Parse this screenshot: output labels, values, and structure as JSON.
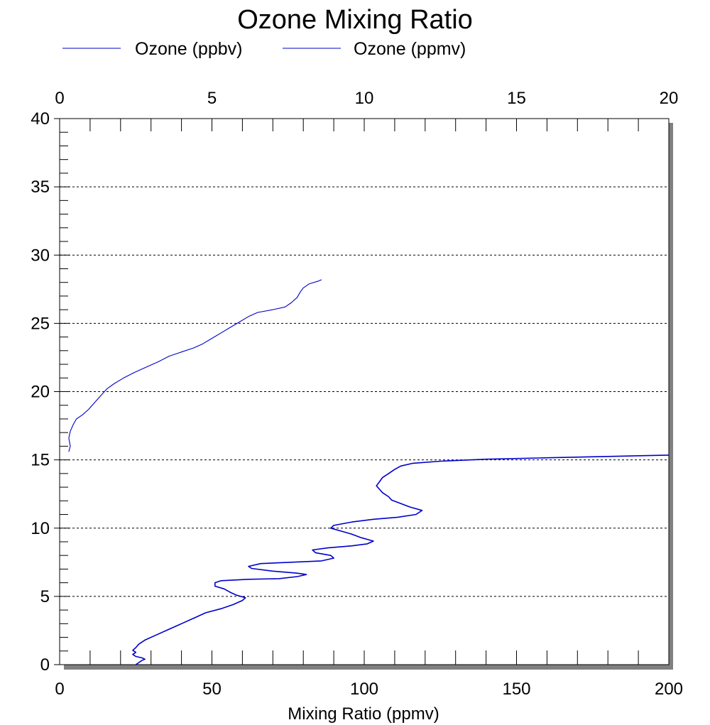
{
  "chart_data": {
    "type": "line",
    "title": "Ozone Mixing Ratio",
    "xlabel": "Mixing Ratio (ppmv)",
    "ylabel": "",
    "xlim": [
      0,
      200
    ],
    "x2lim": [
      0,
      20
    ],
    "ylim": [
      0,
      40
    ],
    "xticks": [
      "0",
      "50",
      "100",
      "150",
      "200"
    ],
    "x2ticks": [
      "0",
      "5",
      "10",
      "15",
      "20"
    ],
    "yticks": [
      "0",
      "5",
      "10",
      "15",
      "20",
      "25",
      "30",
      "35",
      "40"
    ],
    "grid": "horizontal dashed",
    "legend_position": "top-left",
    "series": [
      {
        "name": "Ozone (ppbv)",
        "axis": "bottom",
        "color": "#0000cc",
        "points": [
          [
            25,
            0.0
          ],
          [
            26,
            0.15
          ],
          [
            27,
            0.3
          ],
          [
            28,
            0.4
          ],
          [
            27,
            0.5
          ],
          [
            25,
            0.6
          ],
          [
            24,
            0.75
          ],
          [
            25,
            0.9
          ],
          [
            24,
            1.05
          ],
          [
            25,
            1.25
          ],
          [
            26,
            1.5
          ],
          [
            28,
            1.8
          ],
          [
            32,
            2.2
          ],
          [
            36,
            2.6
          ],
          [
            40,
            3.0
          ],
          [
            44,
            3.4
          ],
          [
            48,
            3.8
          ],
          [
            53,
            4.1
          ],
          [
            57,
            4.4
          ],
          [
            60,
            4.7
          ],
          [
            61,
            4.9
          ],
          [
            58,
            5.1
          ],
          [
            56,
            5.3
          ],
          [
            54,
            5.55
          ],
          [
            51,
            5.75
          ],
          [
            51,
            6.0
          ],
          [
            53,
            6.15
          ],
          [
            62,
            6.25
          ],
          [
            72,
            6.3
          ],
          [
            78,
            6.45
          ],
          [
            81,
            6.6
          ],
          [
            78,
            6.7
          ],
          [
            70,
            6.85
          ],
          [
            63,
            7.05
          ],
          [
            62,
            7.2
          ],
          [
            66,
            7.4
          ],
          [
            76,
            7.5
          ],
          [
            86,
            7.6
          ],
          [
            90,
            7.8
          ],
          [
            89,
            8.0
          ],
          [
            84,
            8.2
          ],
          [
            83,
            8.4
          ],
          [
            88,
            8.55
          ],
          [
            96,
            8.7
          ],
          [
            101,
            8.85
          ],
          [
            103,
            9.05
          ],
          [
            99,
            9.3
          ],
          [
            96,
            9.55
          ],
          [
            93,
            9.75
          ],
          [
            89,
            10.0
          ],
          [
            90,
            10.2
          ],
          [
            96,
            10.45
          ],
          [
            103,
            10.65
          ],
          [
            111,
            10.8
          ],
          [
            117,
            11.0
          ],
          [
            119,
            11.3
          ],
          [
            115,
            11.55
          ],
          [
            112,
            11.8
          ],
          [
            109,
            12.05
          ],
          [
            108,
            12.3
          ],
          [
            106,
            12.6
          ],
          [
            105,
            12.85
          ],
          [
            104,
            13.1
          ],
          [
            105,
            13.4
          ],
          [
            106,
            13.7
          ],
          [
            108,
            14.0
          ],
          [
            110,
            14.3
          ],
          [
            112,
            14.55
          ],
          [
            116,
            14.75
          ],
          [
            125,
            14.9
          ],
          [
            140,
            15.05
          ],
          [
            160,
            15.15
          ],
          [
            180,
            15.25
          ],
          [
            200,
            15.35
          ]
        ]
      },
      {
        "name": "Ozone (ppmv)",
        "axis": "top",
        "color": "#0000cc",
        "points": [
          [
            0.3,
            15.6
          ],
          [
            0.35,
            16.0
          ],
          [
            0.3,
            16.6
          ],
          [
            0.35,
            17.1
          ],
          [
            0.45,
            17.6
          ],
          [
            0.55,
            18.0
          ],
          [
            0.75,
            18.3
          ],
          [
            0.95,
            18.7
          ],
          [
            1.15,
            19.2
          ],
          [
            1.35,
            19.7
          ],
          [
            1.55,
            20.2
          ],
          [
            1.8,
            20.6
          ],
          [
            2.1,
            21.0
          ],
          [
            2.45,
            21.4
          ],
          [
            2.85,
            21.8
          ],
          [
            3.25,
            22.2
          ],
          [
            3.6,
            22.6
          ],
          [
            4.0,
            22.9
          ],
          [
            4.4,
            23.2
          ],
          [
            4.7,
            23.5
          ],
          [
            5.0,
            23.9
          ],
          [
            5.3,
            24.3
          ],
          [
            5.6,
            24.7
          ],
          [
            5.9,
            25.1
          ],
          [
            6.2,
            25.5
          ],
          [
            6.5,
            25.8
          ],
          [
            7.0,
            26.0
          ],
          [
            7.4,
            26.2
          ],
          [
            7.6,
            26.5
          ],
          [
            7.8,
            26.9
          ],
          [
            7.9,
            27.3
          ],
          [
            8.0,
            27.6
          ],
          [
            8.2,
            27.9
          ],
          [
            8.5,
            28.1
          ],
          [
            8.6,
            28.2
          ]
        ]
      }
    ]
  }
}
